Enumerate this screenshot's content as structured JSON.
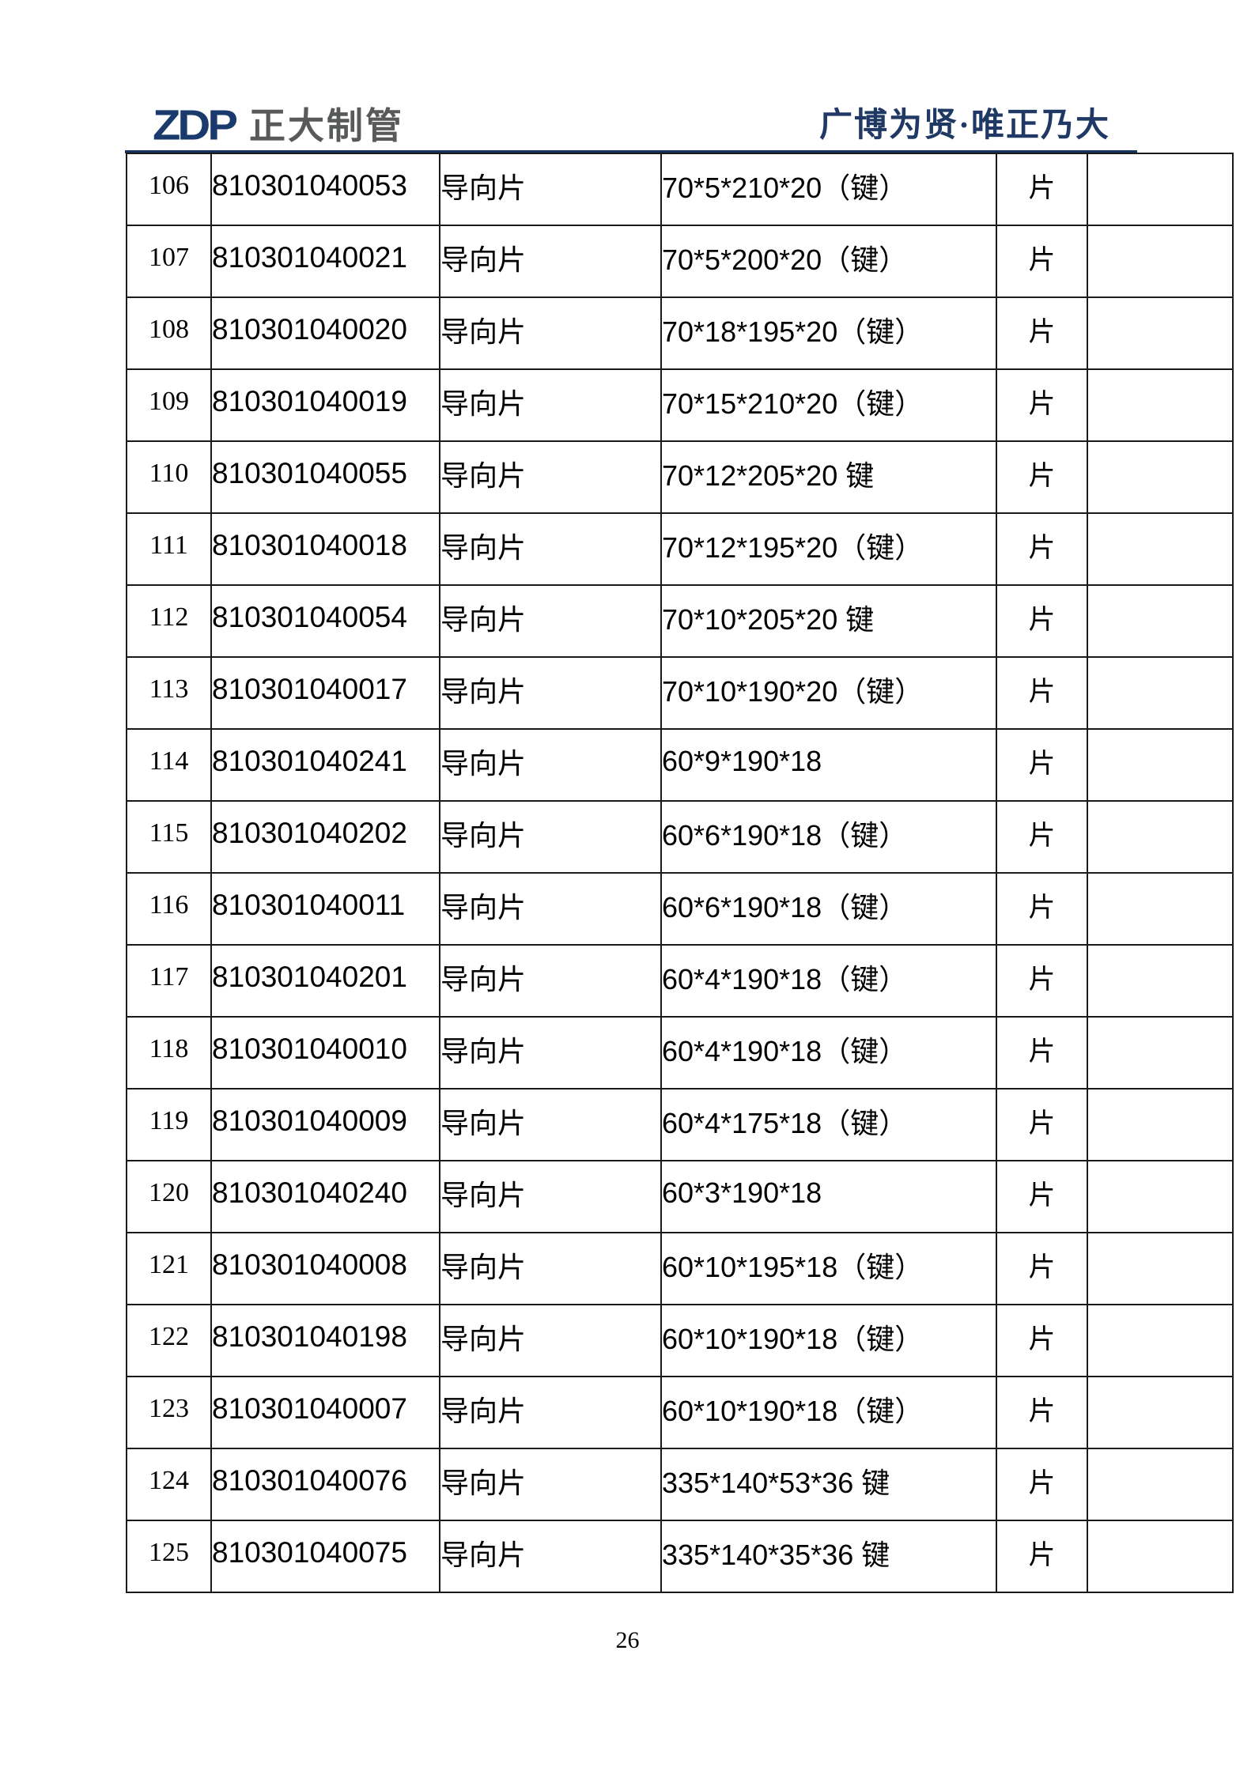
{
  "header": {
    "logo_text": "ZDP",
    "company_name": "正大制管",
    "slogan": "广博为贤·唯正乃大"
  },
  "table": {
    "rows": [
      {
        "no": "106",
        "code": "810301040053",
        "name": "导向片",
        "spec": "70*5*210*20（键）",
        "unit": "片",
        "note": ""
      },
      {
        "no": "107",
        "code": "810301040021",
        "name": "导向片",
        "spec": "70*5*200*20（键）",
        "unit": "片",
        "note": ""
      },
      {
        "no": "108",
        "code": "810301040020",
        "name": "导向片",
        "spec": "70*18*195*20（键）",
        "unit": "片",
        "note": ""
      },
      {
        "no": "109",
        "code": "810301040019",
        "name": "导向片",
        "spec": "70*15*210*20（键）",
        "unit": "片",
        "note": ""
      },
      {
        "no": "110",
        "code": "810301040055",
        "name": "导向片",
        "spec": "70*12*205*20 键",
        "unit": "片",
        "note": ""
      },
      {
        "no": "111",
        "code": "810301040018",
        "name": "导向片",
        "spec": "70*12*195*20（键）",
        "unit": "片",
        "note": ""
      },
      {
        "no": "112",
        "code": "810301040054",
        "name": "导向片",
        "spec": "70*10*205*20 键",
        "unit": "片",
        "note": ""
      },
      {
        "no": "113",
        "code": "810301040017",
        "name": "导向片",
        "spec": "70*10*190*20（键）",
        "unit": "片",
        "note": ""
      },
      {
        "no": "114",
        "code": "810301040241",
        "name": "导向片",
        "spec": "60*9*190*18",
        "unit": "片",
        "note": ""
      },
      {
        "no": "115",
        "code": "810301040202",
        "name": "导向片",
        "spec": "60*6*190*18（键）",
        "unit": "片",
        "note": ""
      },
      {
        "no": "116",
        "code": "810301040011",
        "name": "导向片",
        "spec": "60*6*190*18（键）",
        "unit": "片",
        "note": ""
      },
      {
        "no": "117",
        "code": "810301040201",
        "name": "导向片",
        "spec": "60*4*190*18（键）",
        "unit": "片",
        "note": ""
      },
      {
        "no": "118",
        "code": "810301040010",
        "name": "导向片",
        "spec": "60*4*190*18（键）",
        "unit": "片",
        "note": ""
      },
      {
        "no": "119",
        "code": "810301040009",
        "name": "导向片",
        "spec": "60*4*175*18（键）",
        "unit": "片",
        "note": ""
      },
      {
        "no": "120",
        "code": "810301040240",
        "name": "导向片",
        "spec": "60*3*190*18",
        "unit": "片",
        "note": ""
      },
      {
        "no": "121",
        "code": "810301040008",
        "name": "导向片",
        "spec": "60*10*195*18（键）",
        "unit": "片",
        "note": ""
      },
      {
        "no": "122",
        "code": "810301040198",
        "name": "导向片",
        "spec": "60*10*190*18（键）",
        "unit": "片",
        "note": ""
      },
      {
        "no": "123",
        "code": "810301040007",
        "name": "导向片",
        "spec": "60*10*190*18（键）",
        "unit": "片",
        "note": ""
      },
      {
        "no": "124",
        "code": "810301040076",
        "name": "导向片",
        "spec": "335*140*53*36 键",
        "unit": "片",
        "note": ""
      },
      {
        "no": "125",
        "code": "810301040075",
        "name": "导向片",
        "spec": "335*140*35*36 键",
        "unit": "片",
        "note": ""
      }
    ]
  },
  "footer": {
    "page_number": "26"
  },
  "colors": {
    "logo_navy": "#1a3a6e",
    "logo_gray": "#58595b",
    "slogan_navy": "#1f3864",
    "rule_navy": "#17365d",
    "border_black": "#1a1a1a"
  }
}
